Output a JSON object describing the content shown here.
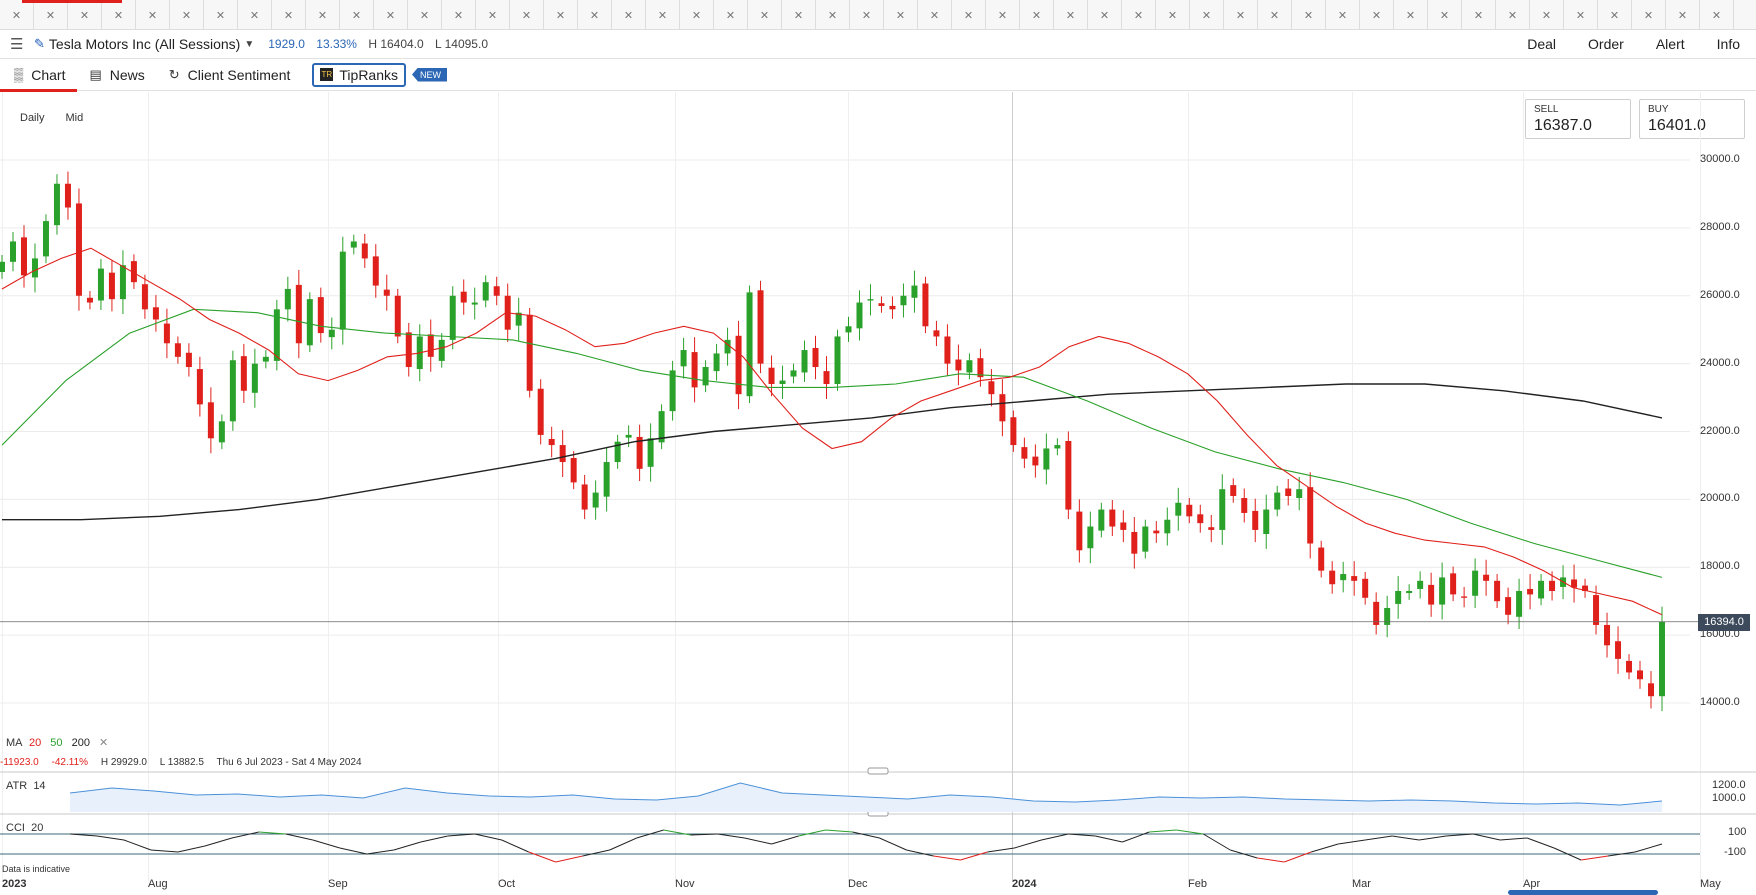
{
  "tabstrip": {
    "tab_count": 51
  },
  "header": {
    "instrument": "Tesla Motors Inc (All Sessions)",
    "change": "1929.0",
    "change_pct": "13.33%",
    "high": "H 16404.0",
    "low": "L 14095.0",
    "actions": [
      "Deal",
      "Order",
      "Alert",
      "Info"
    ]
  },
  "subnav": {
    "chart": "Chart",
    "news": "News",
    "sentiment": "Client Sentiment",
    "tipranks": "TipRanks",
    "new_badge": "NEW"
  },
  "period": {
    "interval": "Daily",
    "price_type": "Mid"
  },
  "quote": {
    "sell_label": "SELL",
    "sell_value": "16387.0",
    "buy_label": "BUY",
    "buy_value": "16401.0"
  },
  "current_price": "16394.0",
  "ma_legend": {
    "label": "MA",
    "p20": "20",
    "p50": "50",
    "p200": "200"
  },
  "range": {
    "change": "-11923.0",
    "change_pct": "-42.11%",
    "high": "H 29929.0",
    "low": "L 13882.5",
    "dates": "Thu 6 Jul 2023 - Sat 4 May 2024"
  },
  "atr": {
    "label": "ATR",
    "period": "14",
    "ticks": [
      "1200.0",
      "1000.0"
    ]
  },
  "cci": {
    "label": "CCI",
    "period": "20",
    "ticks": [
      "100",
      "-100"
    ]
  },
  "footer_note": "Data is indicative",
  "colors": {
    "up": "#2aa12a",
    "down": "#e0201b",
    "ma20": "#e0201b",
    "ma50": "#2aa12a",
    "ma200": "#222222",
    "atr": "#4a90d9",
    "accent": "#2b67b5"
  },
  "chart_data": {
    "type": "candlestick",
    "title": "",
    "ylabel": "",
    "ylim": [
      13000,
      31000
    ],
    "y_ticks": [
      "30000.0",
      "28000.0",
      "26000.0",
      "24000.0",
      "22000.0",
      "20000.0",
      "18000.0",
      "16000.0",
      "14000.0"
    ],
    "x_labels": [
      "2023",
      "Aug",
      "Sep",
      "Oct",
      "Nov",
      "Dec",
      "2024",
      "Feb",
      "Mar",
      "Apr",
      "May"
    ],
    "close_series": [
      27000,
      27600,
      26600,
      27100,
      28200,
      29300,
      28600,
      26000,
      25800,
      26800,
      25900,
      26900,
      26400,
      25600,
      25300,
      24600,
      24200,
      23900,
      22800,
      21800,
      22300,
      24100,
      23200,
      24000,
      24200,
      25600,
      26200,
      24600,
      25900,
      24900,
      25000,
      27300,
      27600,
      27100,
      26300,
      26000,
      24800,
      23900,
      24800,
      24200,
      24700,
      26000,
      25800,
      25800,
      26400,
      26000,
      25000,
      25500,
      23200,
      21900,
      21600,
      21100,
      20500,
      19700,
      20200,
      21100,
      21700,
      21900,
      20900,
      21800,
      22600,
      23800,
      24400,
      23300,
      23900,
      24300,
      24700,
      23100,
      26100,
      24000,
      23400,
      23500,
      23800,
      24400,
      23900,
      23400,
      24800,
      25100,
      25800,
      25900,
      25700,
      25600,
      26000,
      26300,
      25100,
      24800,
      24000,
      23800,
      24100,
      23600,
      23100,
      22300,
      21600,
      21200,
      21000,
      21500,
      21600,
      19700,
      18500,
      19200,
      19700,
      19200,
      19100,
      18400,
      19200,
      19000,
      19400,
      19900,
      19500,
      19300,
      19100,
      20300,
      20100,
      19600,
      19100,
      19700,
      20200,
      20100,
      20300,
      18700,
      17900,
      17500,
      17800,
      17600,
      17100,
      16300,
      16800,
      17300,
      17300,
      17600,
      16900,
      17700,
      17200,
      17100,
      17900,
      17600,
      17000,
      16600,
      17300,
      17200,
      17600,
      17300,
      17700,
      17400,
      17300,
      16300,
      15700,
      15300,
      14900,
      14700,
      14200,
      16400
    ],
    "ma20_series": [
      26200,
      26700,
      27100,
      27400,
      26900,
      26400,
      25900,
      25300,
      24900,
      24400,
      23700,
      23500,
      23800,
      24200,
      24300,
      24500,
      24900,
      25500,
      25400,
      25000,
      24500,
      24600,
      24900,
      25100,
      24900,
      24200,
      23100,
      22100,
      21500,
      21700,
      22400,
      22900,
      23200,
      23500,
      23600,
      23900,
      24500,
      24800,
      24600,
      24200,
      23700,
      22900,
      21900,
      21000,
      20400,
      19800,
      19300,
      19000,
      18800,
      18700,
      18600,
      18300,
      17900,
      17400,
      17200,
      17000,
      16600
    ],
    "ma50_series": [
      21600,
      23500,
      24900,
      25600,
      25500,
      25100,
      24900,
      24800,
      24700,
      24300,
      23800,
      23500,
      23300,
      23300,
      23400,
      23700,
      23600,
      22900,
      22100,
      21400,
      20900,
      20500,
      20000,
      19300,
      18700,
      18200,
      17700
    ],
    "ma200_series": [
      19400,
      19400,
      19500,
      19700,
      20000,
      20400,
      20800,
      21200,
      21700,
      22000,
      22200,
      22400,
      22700,
      22900,
      23100,
      23200,
      23300,
      23400,
      23400,
      23200,
      22900,
      22400
    ],
    "atr_series": [
      1100,
      1150,
      1120,
      1080,
      1090,
      1060,
      1080,
      1050,
      1150,
      1100,
      1070,
      1060,
      1080,
      1040,
      1030,
      1070,
      1200,
      1100,
      1080,
      1060,
      1040,
      1080,
      1060,
      1020,
      1010,
      1030,
      1060,
      1050,
      1060,
      1040,
      1030,
      1020,
      1030,
      1020,
      1000,
      990,
      1000,
      980,
      1020
    ],
    "cci_series": [
      100,
      80,
      40,
      -60,
      -80,
      -20,
      60,
      120,
      100,
      40,
      -40,
      -100,
      -60,
      20,
      80,
      100,
      40,
      -80,
      -180,
      -120,
      -60,
      60,
      140,
      90,
      100,
      60,
      0,
      80,
      140,
      120,
      60,
      -60,
      -120,
      -160,
      -80,
      -40,
      40,
      100,
      80,
      20,
      120,
      140,
      100,
      -60,
      -140,
      -180,
      -80,
      0,
      40,
      80,
      40,
      80,
      100,
      40,
      60,
      -40,
      -160,
      -120,
      -80,
      0
    ]
  }
}
